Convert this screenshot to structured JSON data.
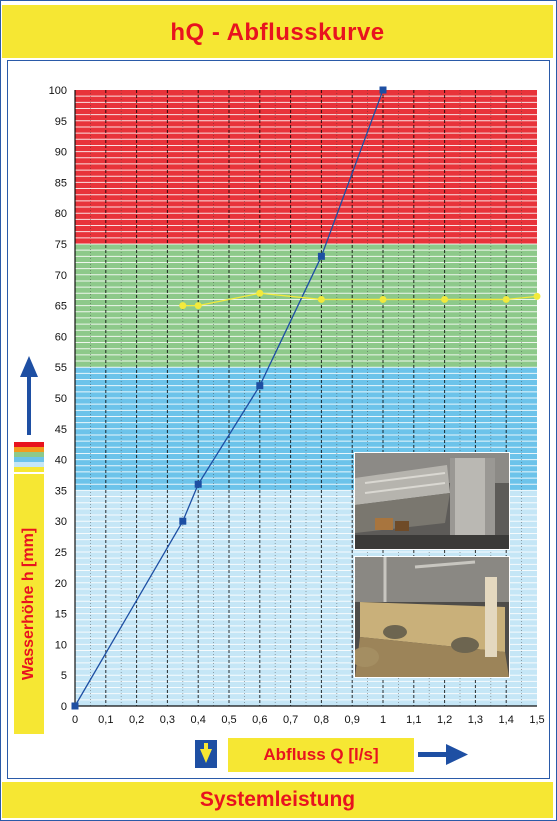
{
  "header": {
    "title": "hQ - Abflusskurve"
  },
  "footer": {
    "title": "Systemleistung"
  },
  "colors": {
    "zone_red": "#e8333a",
    "zone_green": "#8dc98a",
    "zone_blue": "#6cc3ea",
    "zone_lightblue": "#c5e6f6",
    "curve_blue": "#1e4fa3",
    "curve_yellow": "#f2ea3c",
    "label_red": "#e8131f",
    "label_yellow": "#f6e733"
  },
  "chart_data": {
    "type": "line",
    "title": "hQ - Abflusskurve",
    "xlabel": "Abfluss Q [l/s]",
    "ylabel": "Wasserhöhe h [mm]",
    "xlim": [
      0,
      1.5
    ],
    "ylim": [
      0,
      100
    ],
    "x_ticks": [
      "0",
      "0,1",
      "0,2",
      "0,3",
      "0,4",
      "0,5",
      "0,6",
      "0,7",
      "0,8",
      "0,9",
      "1",
      "1,1",
      "1,2",
      "1,3",
      "1,4",
      "1,5"
    ],
    "y_ticks": [
      "0",
      "5",
      "10",
      "15",
      "20",
      "25",
      "30",
      "35",
      "40",
      "45",
      "50",
      "55",
      "60",
      "65",
      "70",
      "75",
      "80",
      "85",
      "90",
      "95",
      "100"
    ],
    "zones": [
      {
        "from": 75,
        "to": 100,
        "color": "#e8333a"
      },
      {
        "from": 55,
        "to": 75,
        "color": "#8dc98a"
      },
      {
        "from": 35,
        "to": 55,
        "color": "#6cc3ea"
      },
      {
        "from": 0,
        "to": 35,
        "color": "#c5e6f6"
      }
    ],
    "grid": true,
    "series": [
      {
        "color": "#1e4fa3",
        "marker": "square",
        "points": [
          [
            0,
            0
          ],
          [
            0.35,
            30
          ],
          [
            0.4,
            36
          ],
          [
            0.6,
            52
          ],
          [
            0.8,
            73
          ],
          [
            1.0,
            100
          ]
        ]
      },
      {
        "color": "#f2ea3c",
        "marker": "circle",
        "points": [
          [
            0.35,
            65
          ],
          [
            0.4,
            65
          ],
          [
            0.6,
            67
          ],
          [
            0.8,
            66
          ],
          [
            1.0,
            66
          ],
          [
            1.2,
            66
          ],
          [
            1.4,
            66
          ],
          [
            1.5,
            66.5
          ]
        ]
      }
    ]
  }
}
